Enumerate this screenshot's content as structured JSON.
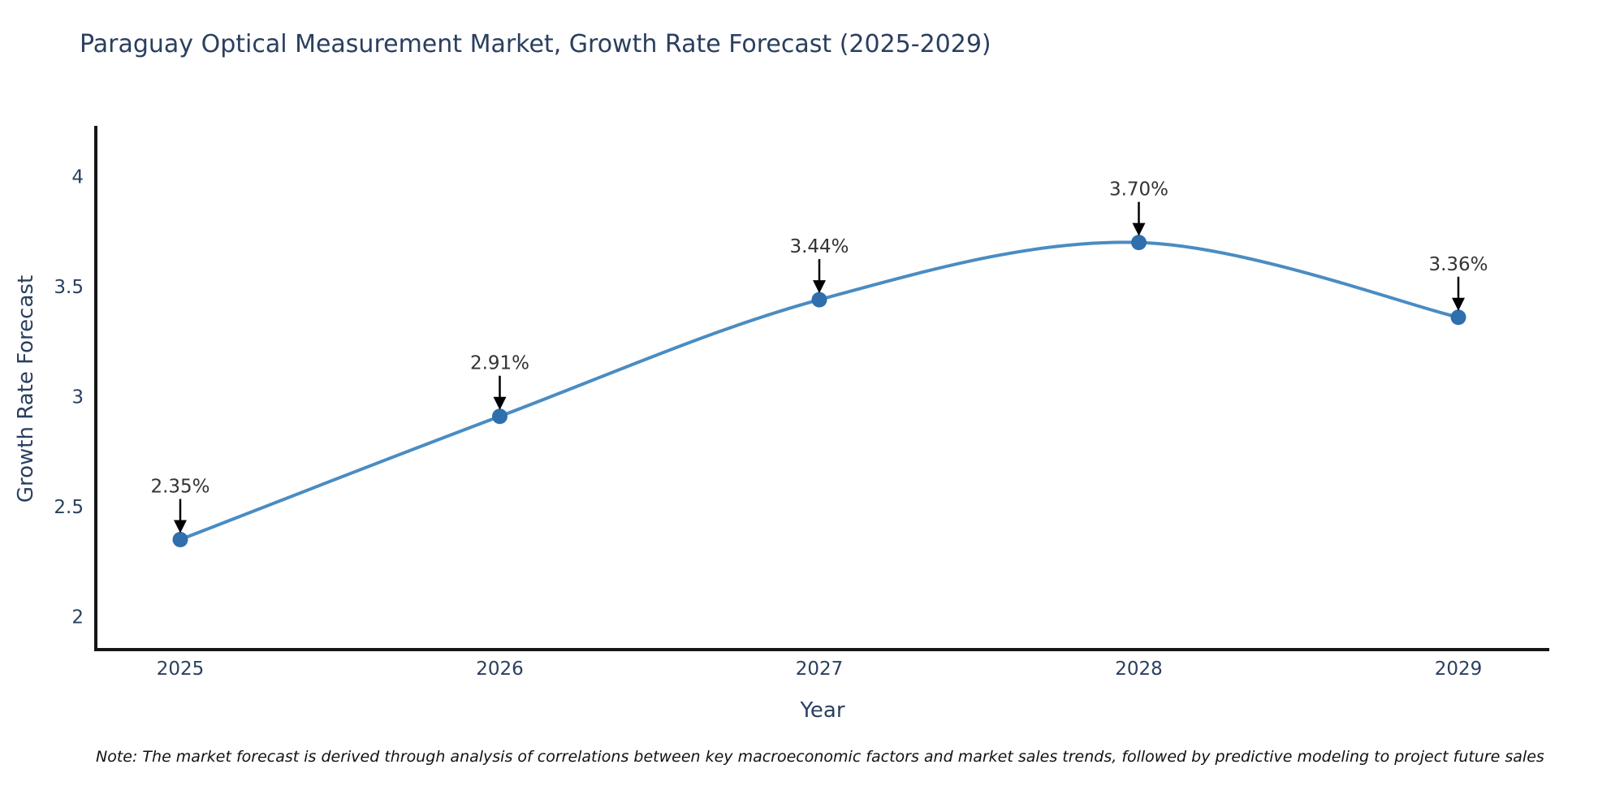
{
  "title": "Paraguay Optical Measurement Market, Growth Rate Forecast (2025-2029)",
  "note": "Note: The market forecast is derived through analysis of correlations between key macroeconomic factors and market sales trends, followed by predictive modeling to project future sales",
  "chart_data": {
    "type": "line",
    "line_shape": "spline",
    "title": "Paraguay Optical Measurement Market, Growth Rate Forecast (2025-2029)",
    "xlabel": "Year",
    "ylabel": "Growth Rate Forecast",
    "categories": [
      "2025",
      "2026",
      "2027",
      "2028",
      "2029"
    ],
    "values": [
      2.35,
      2.91,
      3.44,
      3.7,
      3.36
    ],
    "point_labels": [
      "2.35%",
      "2.91%",
      "3.44%",
      "3.70%",
      "3.36%"
    ],
    "yticks": [
      "2",
      "2.5",
      "3",
      "3.5",
      "4"
    ],
    "ytick_values": [
      2,
      2.5,
      3,
      3.5,
      4
    ],
    "ylim": [
      1.85,
      4.23
    ],
    "grid": false,
    "legend": "none",
    "markers": true,
    "annotations_have_arrows": true,
    "colors": {
      "line": "#4a8cc2",
      "marker": "#2f6fae",
      "arrow": "#000000",
      "axis_line": "#161616",
      "axis_text": "#2a3f5f",
      "annotation_text": "#333333",
      "background": "#ffffff"
    }
  }
}
